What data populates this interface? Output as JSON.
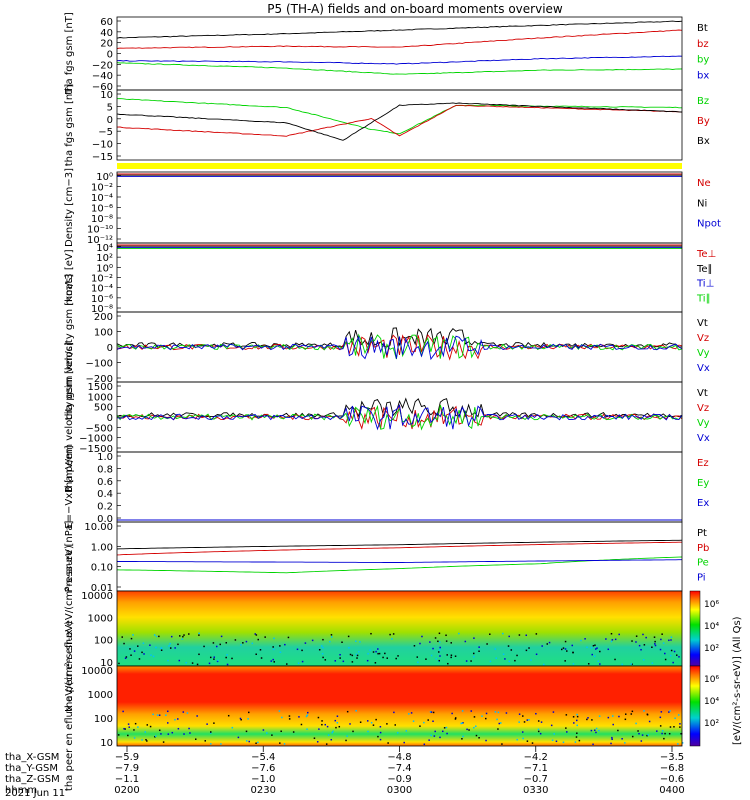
{
  "title": "P5 (TH-A) fields and on-board moments overview",
  "date": "2021 Jun 11",
  "colors": {
    "black": "#000000",
    "red": "#d40000",
    "green": "#00d400",
    "blue": "#0000d4",
    "yellow": "#ffff00"
  },
  "chart_data": [
    {
      "id": "fgs-gsm-abs",
      "type": "line",
      "ylabel": "tha fgs gsm [nT]",
      "ylim": [
        -70,
        70
      ],
      "ticks": [
        "60",
        "40",
        "20",
        "0",
        "−20",
        "−40",
        "−60"
      ],
      "tickvals": [
        60,
        40,
        20,
        0,
        -20,
        -40,
        -60
      ],
      "series": [
        {
          "name": "Bt",
          "color": "#000000",
          "x": [
            0,
            0.3,
            0.5,
            0.75,
            1
          ],
          "y": [
            30,
            38,
            45,
            54,
            62
          ]
        },
        {
          "name": "bz",
          "color": "#d40000",
          "x": [
            0,
            0.3,
            0.5,
            0.75,
            1
          ],
          "y": [
            10,
            14,
            12,
            30,
            45
          ]
        },
        {
          "name": "by",
          "color": "#00d400",
          "x": [
            0,
            0.3,
            0.5,
            0.75,
            1
          ],
          "y": [
            -18,
            -28,
            -40,
            -32,
            -30
          ]
        },
        {
          "name": "bx",
          "color": "#0000d4",
          "x": [
            0,
            0.3,
            0.5,
            0.75,
            1
          ],
          "y": [
            -14,
            -16,
            -20,
            -10,
            -5
          ]
        }
      ]
    },
    {
      "id": "fgs-gsm-detail",
      "type": "line",
      "ylabel": "tha fgs gsm [nT]",
      "ylim": [
        -17,
        15
      ],
      "ticks": [
        "10",
        "5",
        "0",
        "−5",
        "−10",
        "−15"
      ],
      "tickvals": [
        10,
        5,
        0,
        -5,
        -10,
        -15
      ],
      "series": [
        {
          "name": "Bz",
          "color": "#00d400",
          "x": [
            0,
            0.3,
            0.45,
            0.5,
            0.6,
            1
          ],
          "y": [
            11,
            7,
            -3,
            -5,
            8,
            7
          ]
        },
        {
          "name": "By",
          "color": "#d40000",
          "x": [
            0,
            0.3,
            0.45,
            0.5,
            0.6,
            1
          ],
          "y": [
            -2,
            -6,
            2,
            -6,
            8,
            5
          ]
        },
        {
          "name": "Bx",
          "color": "#000000",
          "x": [
            0,
            0.3,
            0.4,
            0.5,
            0.6,
            1
          ],
          "y": [
            4,
            0,
            -8,
            8,
            9,
            5
          ]
        }
      ]
    },
    {
      "id": "density",
      "type": "line",
      "ylabel": "Density [cm−3]",
      "ticks": [
        "10⁰",
        "10⁻²",
        "10⁻⁴",
        "10⁻⁶",
        "10⁻⁸",
        "10⁻¹⁰",
        "10⁻¹²"
      ],
      "series": [
        {
          "name": "Ne",
          "color": "#d40000"
        },
        {
          "name": "Ni",
          "color": "#000000"
        },
        {
          "name": "Npot",
          "color": "#0000d4"
        }
      ]
    },
    {
      "id": "temperature",
      "type": "line",
      "ylabel": "moat3 [eV]",
      "ticks": [
        "10⁴",
        "10²",
        "10⁰",
        "10⁻²",
        "10⁻⁴",
        "10⁻⁶",
        "10⁻⁸"
      ],
      "series": [
        {
          "name": "Te⊥",
          "color": "#d40000"
        },
        {
          "name": "Te∥",
          "color": "#000000"
        },
        {
          "name": "Ti⊥",
          "color": "#0000d4"
        },
        {
          "name": "Ti∥",
          "color": "#00d400"
        }
      ]
    },
    {
      "id": "peim-velocity",
      "type": "line",
      "ylabel": "tha peim velocity gsm [km/s]",
      "ylim": [
        -200,
        200
      ],
      "ticks": [
        "200",
        "100",
        "0",
        "−100",
        "−200"
      ],
      "tickvals": [
        200,
        100,
        0,
        -100,
        -200
      ],
      "series": [
        {
          "name": "Vt",
          "color": "#000000"
        },
        {
          "name": "Vz",
          "color": "#d40000"
        },
        {
          "name": "Vy",
          "color": "#00d400"
        },
        {
          "name": "Vx",
          "color": "#0000d4"
        }
      ]
    },
    {
      "id": "peem-velocity",
      "type": "line",
      "ylabel": "tha peem velocity gsm [km/s]",
      "ylim": [
        -1500,
        1500
      ],
      "ticks": [
        "1500",
        "1000",
        "500",
        "0",
        "−500",
        "−1000",
        "−1500"
      ],
      "tickvals": [
        1500,
        1000,
        500,
        0,
        -500,
        -1000,
        -1500
      ],
      "series": [
        {
          "name": "Vt",
          "color": "#000000"
        },
        {
          "name": "Vz",
          "color": "#d40000"
        },
        {
          "name": "Vy",
          "color": "#00d400"
        },
        {
          "name": "Vx",
          "color": "#0000d4"
        }
      ]
    },
    {
      "id": "efield",
      "type": "line",
      "ylabel": "E=−VxB [mV/m]",
      "ylim": [
        0,
        1
      ],
      "ticks": [
        "1.0",
        "0.8",
        "0.6",
        "0.4",
        "0.2",
        "0.0"
      ],
      "tickvals": [
        1,
        0.8,
        0.6,
        0.4,
        0.2,
        0
      ],
      "series": [
        {
          "name": "Ez",
          "color": "#d40000"
        },
        {
          "name": "Ey",
          "color": "#00d400"
        },
        {
          "name": "Ex",
          "color": "#0000d4"
        }
      ]
    },
    {
      "id": "pressure",
      "type": "line",
      "ylabel": "Pressure [nPa]",
      "log": true,
      "ticks": [
        "10.00",
        "1.00",
        "0.10",
        "0.01"
      ],
      "tickvals": [
        10,
        1,
        0.1,
        0.01
      ],
      "series": [
        {
          "name": "Pt",
          "color": "#000000",
          "x": [
            0,
            0.5,
            1
          ],
          "y": [
            0.75,
            1.2,
            2.0
          ]
        },
        {
          "name": "Pb",
          "color": "#d40000",
          "x": [
            0,
            0.5,
            1
          ],
          "y": [
            0.38,
            0.85,
            1.6
          ]
        },
        {
          "name": "Pe",
          "color": "#00d400",
          "x": [
            0,
            0.3,
            0.5,
            0.75,
            1
          ],
          "y": [
            0.07,
            0.05,
            0.08,
            0.14,
            0.3
          ]
        },
        {
          "name": "Pi",
          "color": "#0000d4",
          "x": [
            0,
            0.5,
            1
          ],
          "y": [
            0.18,
            0.16,
            0.22
          ]
        }
      ]
    },
    {
      "id": "peir-spectrogram",
      "type": "heatmap",
      "ylabel": "tha peir en eflux eV/(cm²-s-sr-eV)",
      "ticks": [
        "10000",
        "1000",
        "100",
        "10"
      ],
      "colorbar": {
        "label": "[eV/(cm²-s-sr-eV)] (All Qs)",
        "ticks": [
          "10⁶",
          "10⁴",
          "10²"
        ]
      }
    },
    {
      "id": "peer-spectrogram",
      "type": "heatmap",
      "ylabel": "tha peer en eflux eV/(cm²-s-sr-eV)",
      "ticks": [
        "10000",
        "1000",
        "100",
        "10"
      ],
      "colorbar": {
        "label": "[eV/(cm²-s-sr-eV)] (All Qs)",
        "ticks": [
          "10⁶",
          "10⁴",
          "10²"
        ]
      }
    }
  ],
  "xaxis": {
    "labels": [
      "tha_X-GSM",
      "tha_Y-GSM",
      "tha_Z-GSM",
      "hhmm"
    ],
    "rows": [
      [
        "−5.9",
        "−5.4",
        "−4.8",
        "−4.2",
        "−3.5"
      ],
      [
        "−7.9",
        "−7.6",
        "−7.4",
        "−7.1",
        "−6.8"
      ],
      [
        "−1.1",
        "−1.0",
        "−0.9",
        "−0.7",
        "−0.6"
      ],
      [
        "0200",
        "0230",
        "0300",
        "0330",
        "0400"
      ]
    ]
  }
}
